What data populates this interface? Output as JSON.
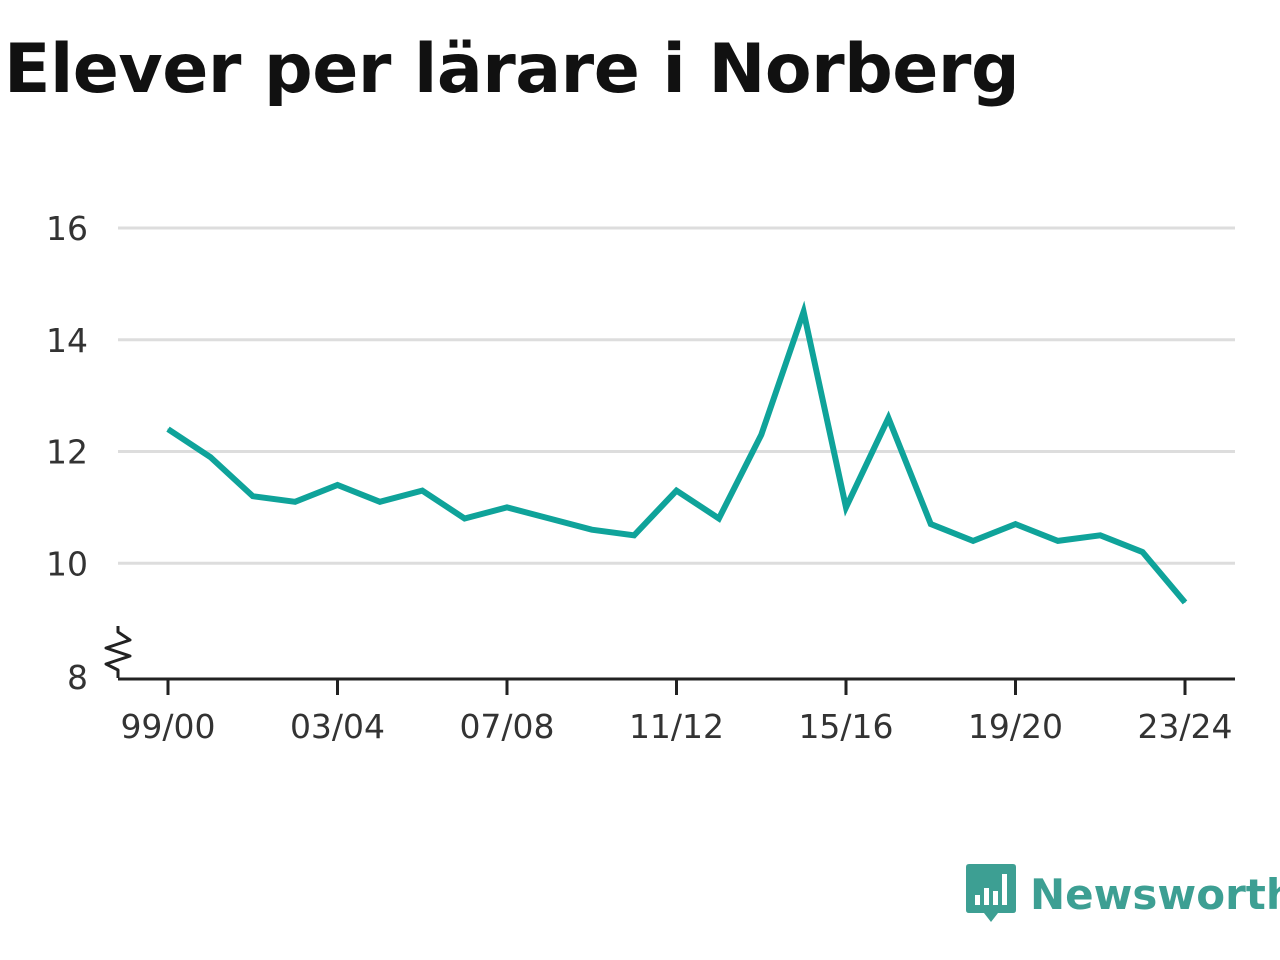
{
  "title": "Elever per lärare i Norberg",
  "brand": {
    "name": "Newsworthy",
    "color": "#3d9f93",
    "icon": "bar-chart-speech-bubble-icon"
  },
  "chart_data": {
    "type": "line",
    "title": "Elever per lärare i Norberg",
    "xlabel": "",
    "ylabel": "",
    "ylim": [
      8,
      16
    ],
    "yticks": [
      8,
      10,
      12,
      14,
      16
    ],
    "y_axis_break": true,
    "grid": true,
    "legend": "none",
    "colors": {
      "line": "#0fa39a",
      "grid": "#dddddd",
      "axis": "#222222"
    },
    "x": [
      "99/00",
      "00/01",
      "01/02",
      "02/03",
      "03/04",
      "04/05",
      "05/06",
      "06/07",
      "07/08",
      "08/09",
      "09/10",
      "10/11",
      "11/12",
      "12/13",
      "13/14",
      "14/15",
      "15/16",
      "16/17",
      "17/18",
      "18/19",
      "19/20",
      "20/21",
      "21/22",
      "22/23",
      "23/24"
    ],
    "xticks": [
      "99/00",
      "03/04",
      "07/08",
      "11/12",
      "15/16",
      "19/20",
      "23/24"
    ],
    "series": [
      {
        "name": "",
        "values": [
          12.4,
          11.9,
          11.2,
          11.1,
          11.4,
          11.1,
          11.3,
          10.8,
          11.0,
          10.8,
          10.6,
          10.5,
          11.3,
          10.8,
          12.3,
          14.5,
          11.0,
          12.6,
          10.7,
          10.4,
          10.7,
          10.4,
          10.5,
          10.2,
          9.3
        ]
      }
    ]
  }
}
